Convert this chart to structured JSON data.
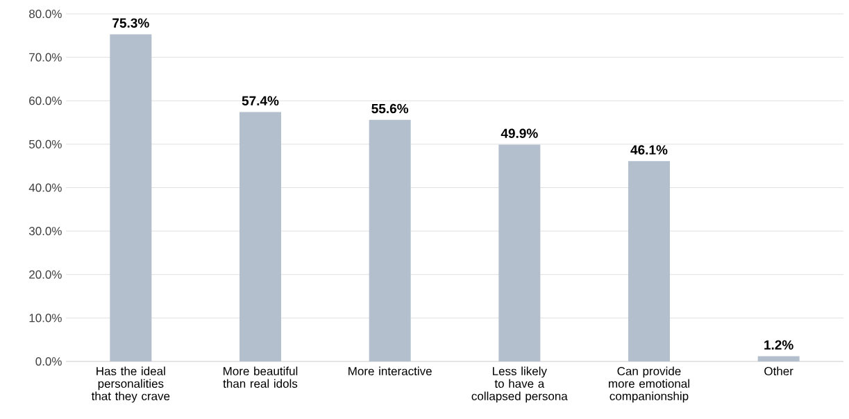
{
  "chart_data": {
    "type": "bar",
    "categories": [
      "Has the ideal personalities that they crave",
      "More beautiful than real idols",
      "More interactive",
      "Less likely to have a collapsed persona",
      "Can provide more emotional companionship",
      "Other"
    ],
    "values": [
      75.3,
      57.4,
      55.6,
      49.9,
      46.1,
      1.2
    ],
    "value_labels": [
      "75.3%",
      "57.4%",
      "55.6%",
      "49.9%",
      "46.1%",
      "1.2%"
    ],
    "color": "#b3bfcd",
    "ylim": [
      0,
      80
    ],
    "yticks": [
      {
        "value": 0,
        "label": "0.0%"
      },
      {
        "value": 10,
        "label": "10.0%"
      },
      {
        "value": 20,
        "label": "20.0%"
      },
      {
        "value": 30,
        "label": "30.0%"
      },
      {
        "value": 40,
        "label": "40.0%"
      },
      {
        "value": 50,
        "label": "50.0%"
      },
      {
        "value": 60,
        "label": "60.0%"
      },
      {
        "value": 70,
        "label": "70.0%"
      },
      {
        "value": 80,
        "label": "80.0%"
      }
    ],
    "grid": "y"
  }
}
